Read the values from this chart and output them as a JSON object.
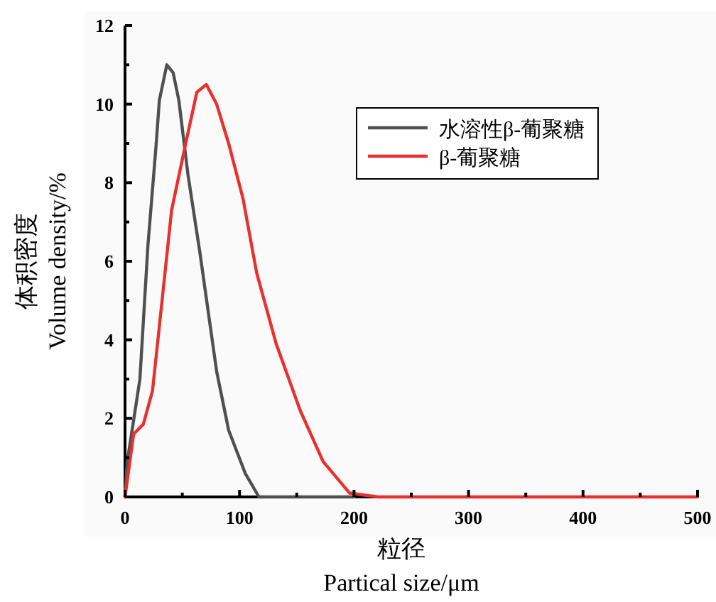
{
  "chart_data": {
    "type": "line",
    "xlabel": "粒径\nPartical size/μm",
    "ylabel": "体积密度\nVolume density/%",
    "xlim": [
      0,
      500
    ],
    "ylim": [
      0,
      12
    ],
    "xticks": [
      0,
      {
        "value": 50,
        "label": null
      },
      100,
      {
        "value": 150,
        "label": null
      },
      200,
      {
        "value": 250,
        "label": null
      },
      300,
      {
        "value": 350,
        "label": null
      },
      400,
      {
        "value": 450,
        "label": null
      },
      500
    ],
    "yticks": [
      0,
      {
        "value": 1,
        "label": null
      },
      2,
      {
        "value": 3,
        "label": null
      },
      4,
      {
        "value": 5,
        "label": null
      },
      6,
      {
        "value": 7,
        "label": null
      },
      8,
      {
        "value": 9,
        "label": null
      },
      10,
      {
        "value": 11,
        "label": null
      },
      12
    ],
    "grid": false,
    "legend": "top right",
    "marker": "none",
    "line_style": "solid",
    "series": [
      {
        "name": "水溶性β-葡聚糖",
        "color": "#505050",
        "x": [
          0,
          2,
          13,
          20,
          27,
          30,
          36.5,
          42,
          47,
          55,
          65.5,
          80,
          90.5,
          105,
          117,
          200
        ],
        "values": [
          0,
          0.9,
          3,
          6.4,
          8.9,
          10.1,
          11.0,
          10.8,
          10.1,
          8.2,
          6.2,
          3.2,
          1.7,
          0.6,
          0,
          0
        ]
      },
      {
        "name": "β-葡聚糖",
        "color": "#e8302f",
        "x": [
          0,
          7.5,
          16,
          24,
          32,
          40.7,
          53,
          62.7,
          71,
          80,
          90.5,
          103,
          115,
          132,
          153,
          173,
          196,
          221,
          300,
          400,
          500
        ],
        "values": [
          0,
          1.6,
          1.85,
          2.7,
          4.9,
          7.3,
          9.0,
          10.3,
          10.5,
          10.0,
          9.0,
          7.6,
          5.7,
          3.9,
          2.2,
          0.9,
          0.1,
          0,
          0,
          0,
          0
        ]
      }
    ]
  }
}
